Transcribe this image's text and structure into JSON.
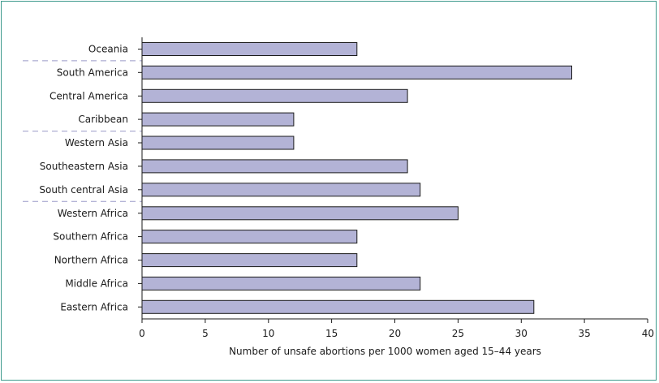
{
  "chart_data": {
    "type": "bar",
    "orientation": "horizontal",
    "categories": [
      "Oceania",
      "South America",
      "Central America",
      "Caribbean",
      "Western Asia",
      "Southeastern Asia",
      "South central Asia",
      "Western Africa",
      "Southern Africa",
      "Northern Africa",
      "Middle Africa",
      "Eastern Africa"
    ],
    "values": [
      17,
      34,
      21,
      12,
      12,
      21,
      22,
      25,
      17,
      17,
      22,
      31
    ],
    "xlabel": "Number of unsafe abortions per 1000 women aged 15–44 years",
    "xlim": [
      0,
      40
    ],
    "xticks": [
      0,
      5,
      10,
      15,
      20,
      25,
      30,
      35,
      40
    ],
    "region_separators_after": [
      "Oceania",
      "Caribbean",
      "South central Asia"
    ],
    "grid": false,
    "colors": {
      "bar_fill": "#b3b3d6",
      "bar_stroke": "#1a1a1a",
      "separator": "#9a9ac8",
      "frame": "#3d9a8c"
    }
  }
}
